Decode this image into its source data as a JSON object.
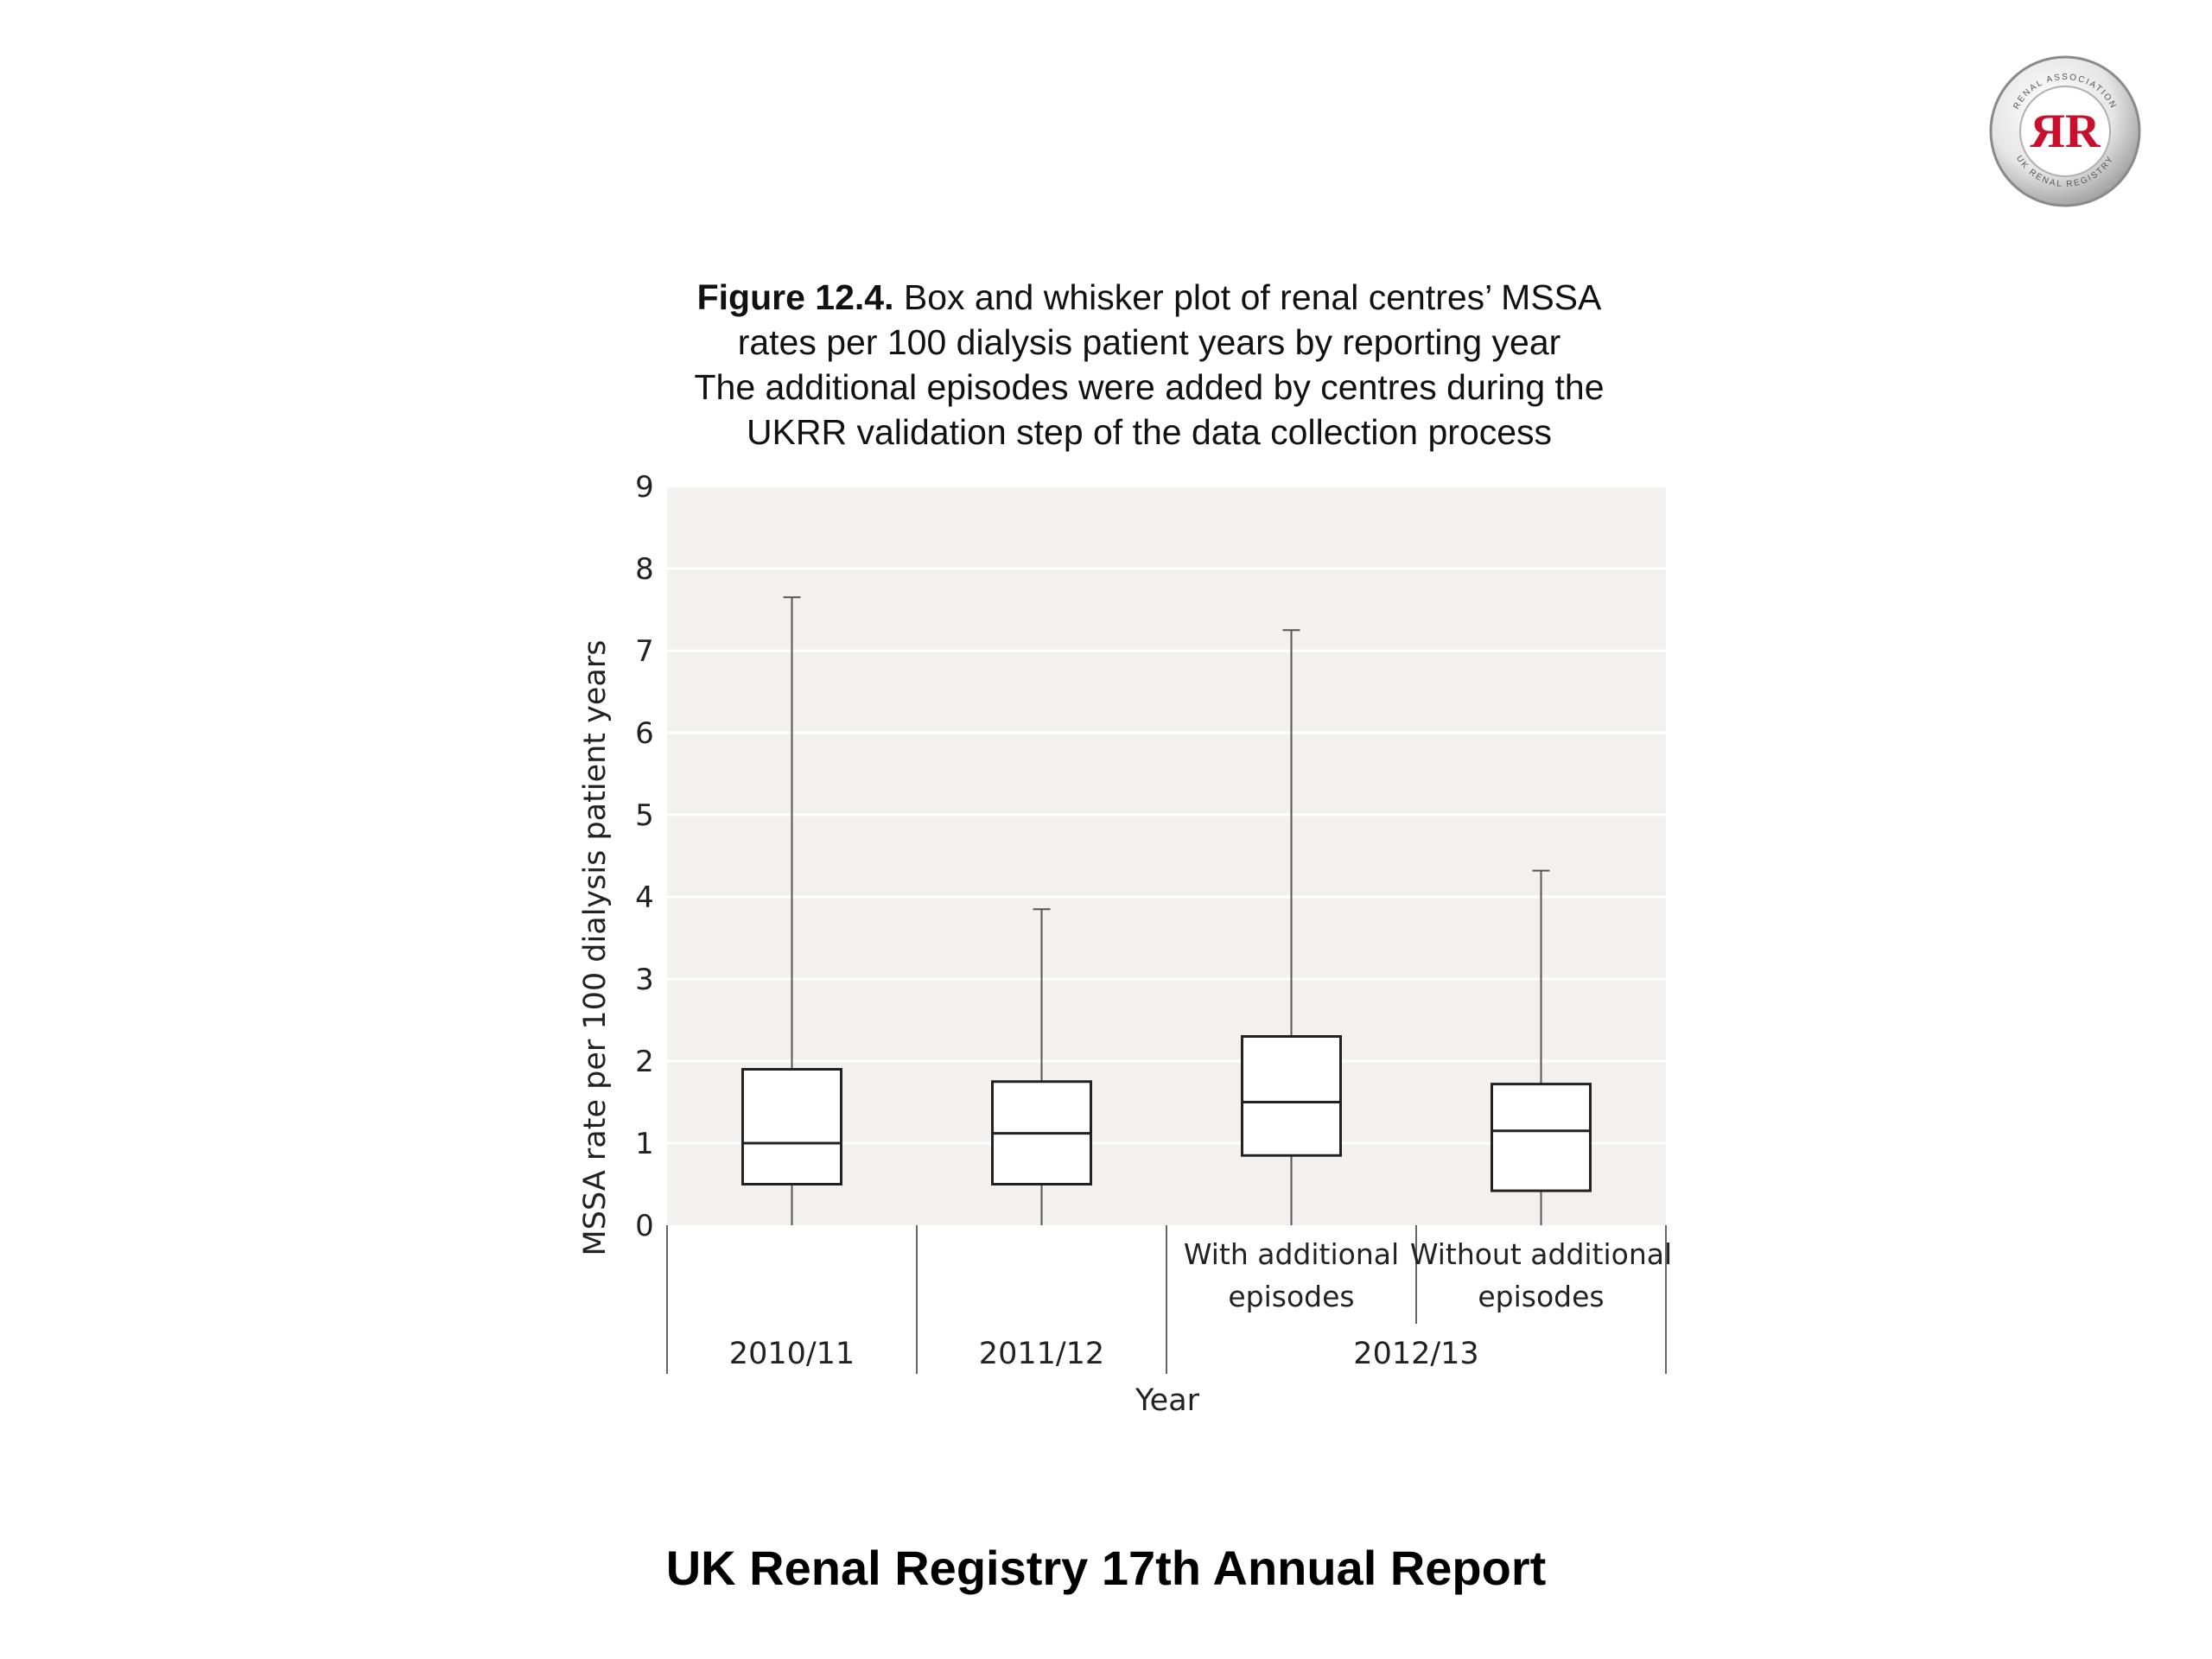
{
  "logo": {
    "ring_text_top": "RENAL ASSOCIATION",
    "ring_text_bottom": "UK RENAL REGISTRY",
    "monogram": "ЯR",
    "accent": "#c8102e"
  },
  "caption": {
    "figure_label": "Figure 12.4.",
    "line1_rest": " Box and whisker plot of renal centres’ MSSA",
    "line2": "rates per 100 dialysis patient years by reporting year",
    "line3": "The additional episodes were added by centres during the",
    "line4": "UKRR validation step of the data collection process"
  },
  "chart_data": {
    "type": "box",
    "ylabel": "MSSA rate per 100 dialysis patient years",
    "xlabel": "Year",
    "ylim": [
      0,
      9
    ],
    "yticks": [
      "0",
      "1",
      "2",
      "3",
      "4",
      "5",
      "6",
      "7",
      "8",
      "9"
    ],
    "grid": true,
    "groups": [
      {
        "label": "2010/11",
        "span": 1
      },
      {
        "label": "2011/12",
        "span": 1
      },
      {
        "label": "2012/13",
        "span": 2
      }
    ],
    "categories": [
      {
        "sublabel": [
          "",
          ""
        ],
        "min": 0,
        "q1": 0.5,
        "median": 1.0,
        "q3": 1.9,
        "max": 7.65
      },
      {
        "sublabel": [
          "",
          ""
        ],
        "min": 0,
        "q1": 0.5,
        "median": 1.12,
        "q3": 1.75,
        "max": 3.85
      },
      {
        "sublabel": [
          "With additional",
          "episodes"
        ],
        "min": 0,
        "q1": 0.85,
        "median": 1.5,
        "q3": 2.3,
        "max": 7.25
      },
      {
        "sublabel": [
          "Without additional",
          "episodes"
        ],
        "min": 0,
        "q1": 0.42,
        "median": 1.15,
        "q3": 1.72,
        "max": 4.32
      }
    ],
    "colors": {
      "plot_bg": "#f2f1f0",
      "grid": "#ffffff",
      "box_stroke": "#222222",
      "whisker": "#555555"
    }
  },
  "footer": {
    "text": "UK Renal Registry 17th Annual Report"
  }
}
